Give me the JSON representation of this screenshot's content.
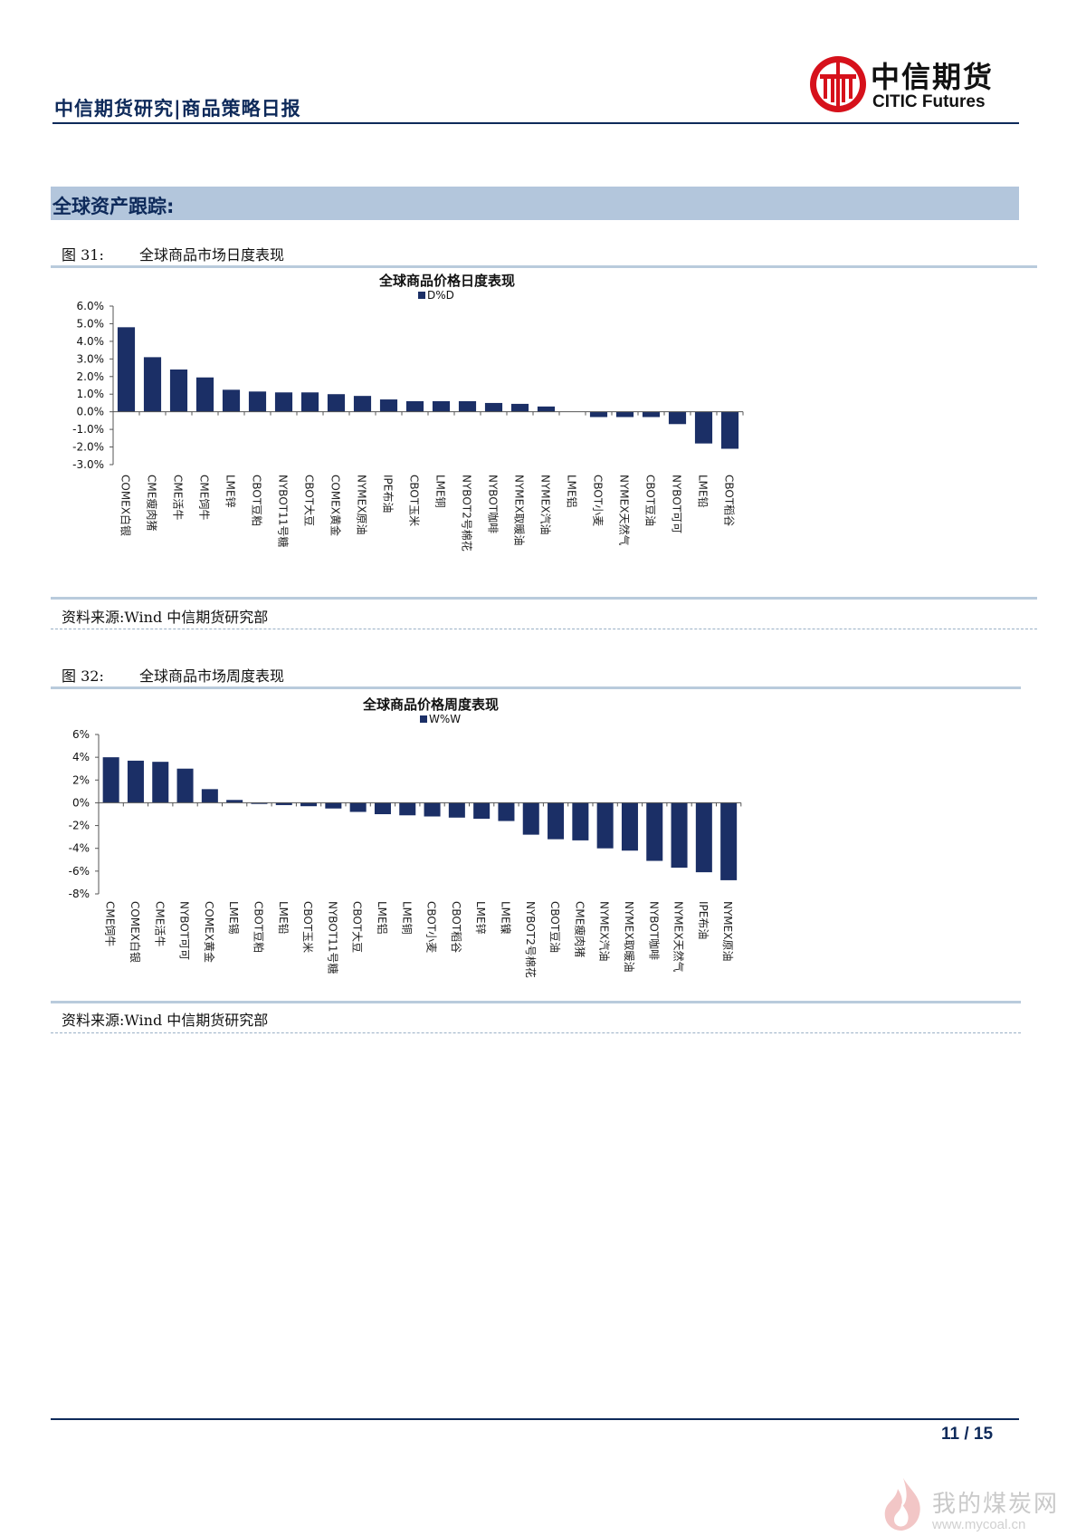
{
  "header": {
    "title": "中信期货研究|商品策略日报",
    "logo_cn": "中信期货",
    "logo_en": "CITIC Futures",
    "accent": "#0e2a5a",
    "logo_red": "#d6111b"
  },
  "section": {
    "title": "全球资产跟踪:"
  },
  "figures": [
    {
      "label": "图 31:",
      "caption": "全球商品市场日度表现",
      "source": "资料来源:Wind  中信期货研究部"
    },
    {
      "label": "图 32:",
      "caption": "全球商品市场周度表现",
      "source": "资料来源:Wind  中信期货研究部"
    }
  ],
  "chart_data": [
    {
      "type": "bar",
      "title": "全球商品价格日度表现",
      "series": [
        {
          "name": "D%D",
          "values": [
            4.8,
            3.1,
            2.4,
            1.95,
            1.25,
            1.15,
            1.1,
            1.1,
            1.0,
            0.9,
            0.7,
            0.6,
            0.6,
            0.6,
            0.5,
            0.45,
            0.3,
            0.0,
            -0.3,
            -0.3,
            -0.3,
            -0.7,
            -1.8,
            -2.1
          ]
        }
      ],
      "categories": [
        "COMEX白银",
        "CME瘦肉猪",
        "CME活牛",
        "CME饲牛",
        "LME锌",
        "CBOT豆粕",
        "NYBOT11号糖",
        "CBOT大豆",
        "COMEX黄金",
        "NYMEX原油",
        "IPE布油",
        "CBOT玉米",
        "LME铜",
        "NYBOT2号棉花",
        "NYBOT咖啡",
        "NYMEX取暖油",
        "NYMEX汽油",
        "LME铝",
        "CBOT小麦",
        "NYMEX天然气",
        "CBOT豆油",
        "NYBOT可可",
        "LME铅",
        "CBOT稻谷"
      ],
      "yticks": [
        "6.0%",
        "5.0%",
        "4.0%",
        "3.0%",
        "2.0%",
        "1.0%",
        "0.0%",
        "-1.0%",
        "-2.0%",
        "-3.0%"
      ],
      "ylim": [
        -3,
        6
      ],
      "legend": "top-center",
      "bar_color": "#1b2f66"
    },
    {
      "type": "bar",
      "title": "全球商品价格周度表现",
      "series": [
        {
          "name": "W%W",
          "values": [
            4.0,
            3.7,
            3.6,
            3.0,
            1.2,
            0.25,
            -0.1,
            -0.2,
            -0.3,
            -0.5,
            -0.8,
            -1.0,
            -1.1,
            -1.2,
            -1.3,
            -1.4,
            -1.6,
            -2.8,
            -3.2,
            -3.3,
            -4.0,
            -4.2,
            -5.1,
            -5.7,
            -6.1,
            -6.8
          ]
        }
      ],
      "categories": [
        "CME饲牛",
        "COMEX白银",
        "CME活牛",
        "NYBOT可可",
        "COMEX黄金",
        "LME锡",
        "CBOT豆粕",
        "LME铅",
        "CBOT玉米",
        "NYBOT11号糖",
        "CBOT大豆",
        "LME铝",
        "LME铜",
        "CBOT小麦",
        "CBOT稻谷",
        "LME锌",
        "LME镍",
        "NYBOT2号棉花",
        "CBOT豆油",
        "CME瘦肉猪",
        "NYMEX汽油",
        "NYMEX取暖油",
        "NYBOT咖啡",
        "NYMEX天然气",
        "IPE布油",
        "NYMEX原油"
      ],
      "yticks": [
        "6%",
        "4%",
        "2%",
        "0%",
        "-2%",
        "-4%",
        "-6%",
        "-8%"
      ],
      "ylim": [
        -8,
        6
      ],
      "legend": "top-center",
      "bar_color": "#1b2f66"
    }
  ],
  "footer": {
    "page": "11 / 15"
  },
  "watermark": {
    "text": "我的煤炭网",
    "url": "www.mycoal.cn"
  }
}
